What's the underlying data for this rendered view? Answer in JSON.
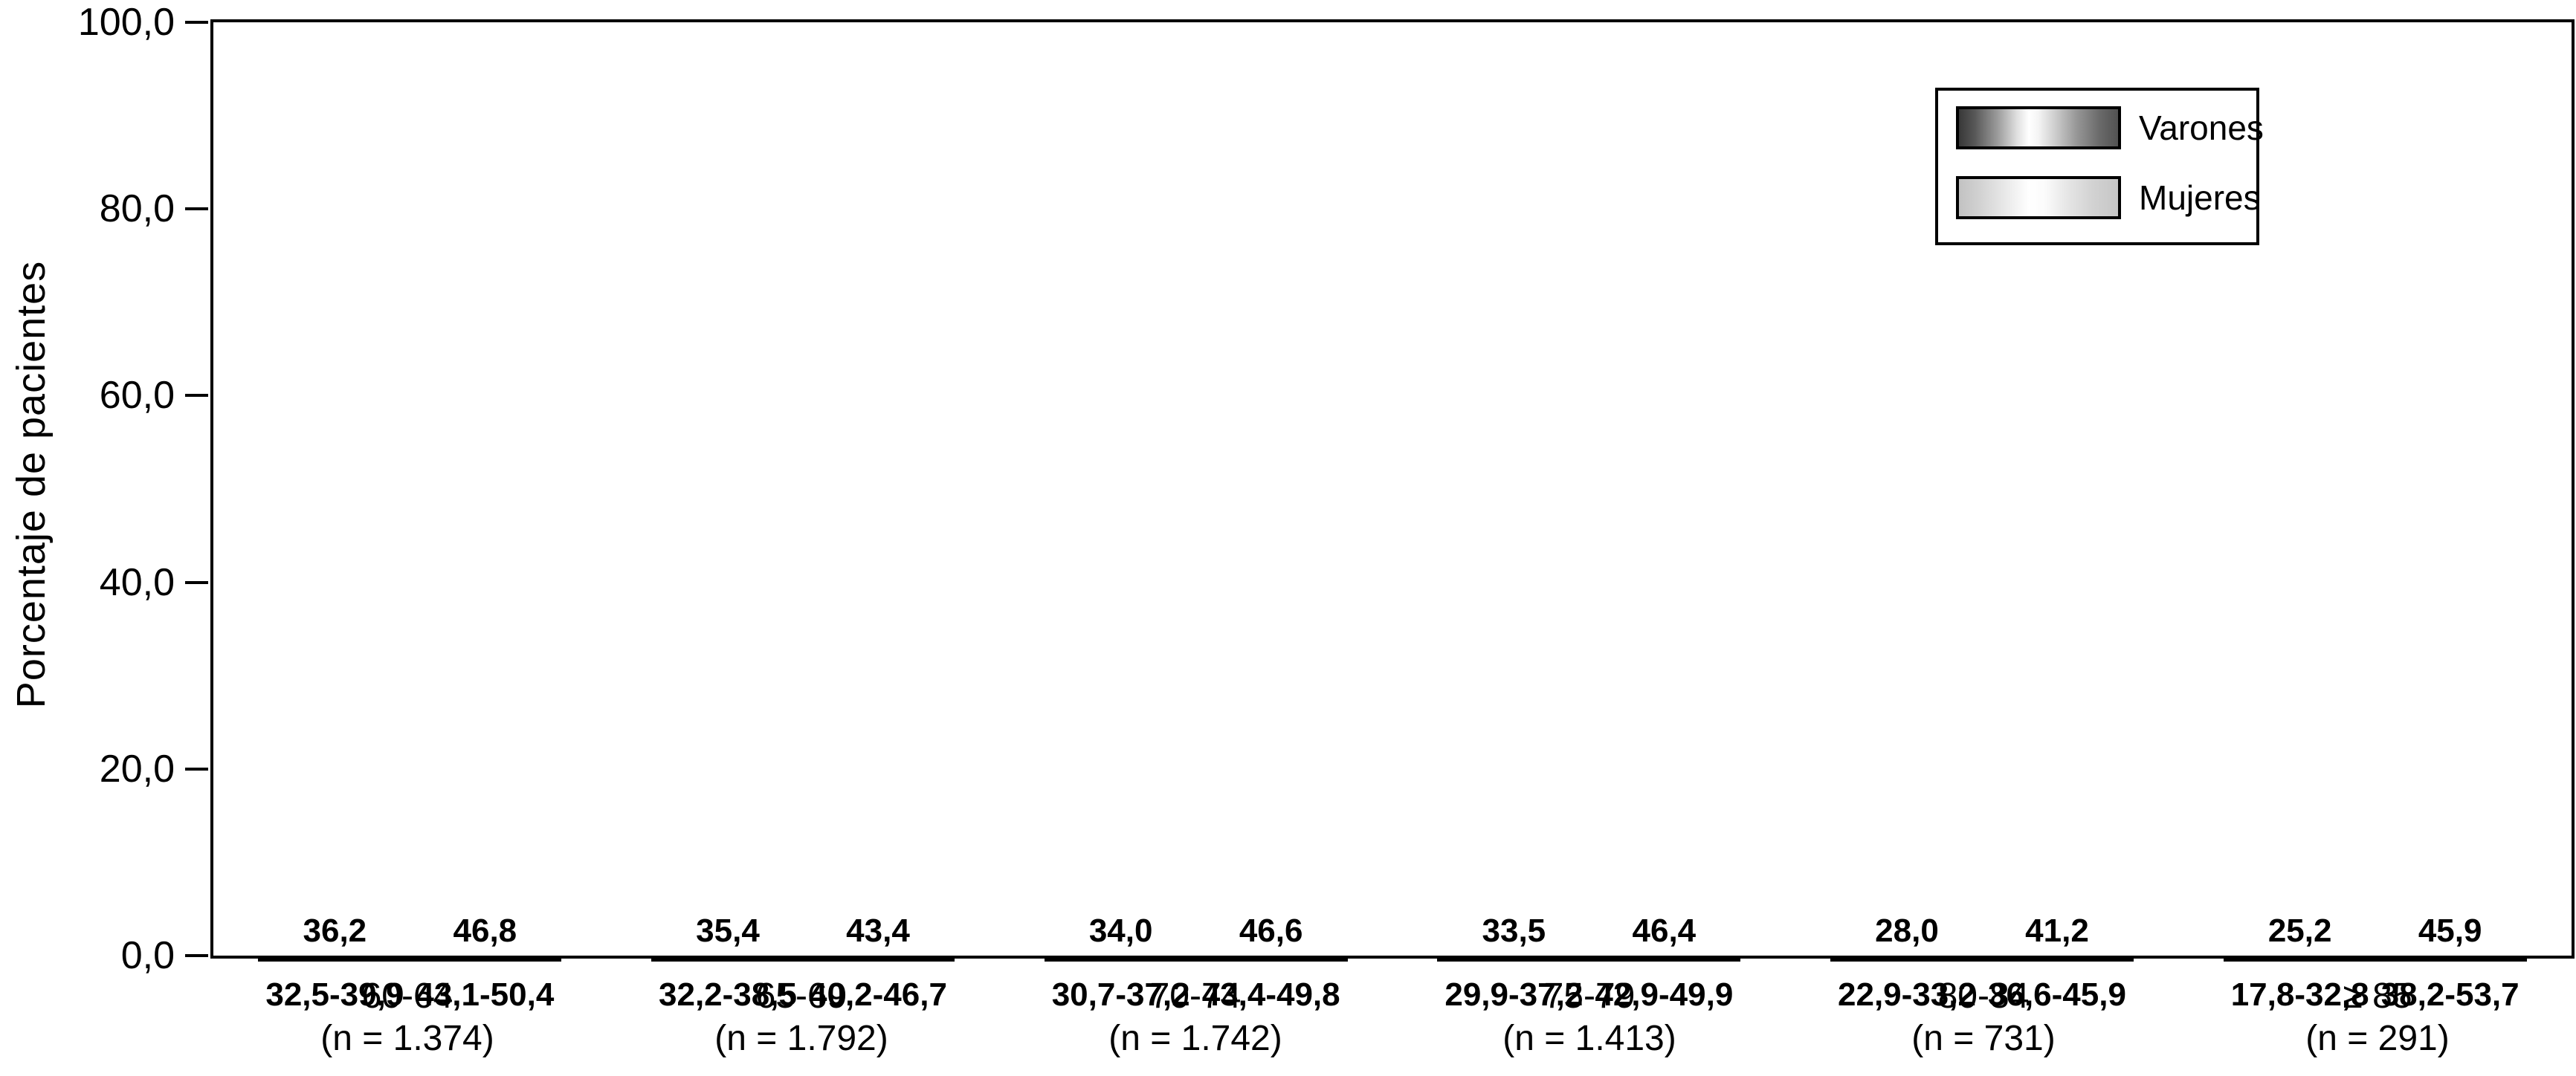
{
  "y_axis": {
    "title": "Porcentaje de pacientes",
    "ticks": [
      "0,0",
      "20,0",
      "40,0",
      "60,0",
      "80,0",
      "100,0"
    ],
    "tick_values": [
      0,
      20,
      40,
      60,
      80,
      100
    ]
  },
  "legend": {
    "items": [
      {
        "label": "Varones"
      },
      {
        "label": "Mujeres"
      }
    ]
  },
  "chart_data": {
    "type": "bar",
    "title": "",
    "xlabel": "",
    "ylabel": "Porcentaje de pacientes",
    "ylim": [
      0,
      100
    ],
    "grid": false,
    "legend_position": "top-right",
    "categories": [
      "60-64",
      "65-69",
      "70-74",
      "75-79",
      "80-84",
      "≥ 85"
    ],
    "category_sublabels": [
      "(n = 1.374)",
      "(n = 1.792)",
      "(n = 1.742)",
      "(n = 1.413)",
      "(n = 731)",
      "(n = 291)"
    ],
    "series": [
      {
        "name": "Varones",
        "values": [
          36.2,
          35.4,
          34.0,
          33.5,
          28.0,
          25.2
        ],
        "value_labels": [
          "36,2",
          "35,4",
          "34,0",
          "33,5",
          "28,0",
          "25,2"
        ],
        "ci_labels": [
          "32,5-39,9",
          "32,2-38,5",
          "30,7-37,2",
          "29,9-37,2",
          "22,9-33,2",
          "17,8-32,8"
        ],
        "color_dark": "#383838",
        "color_highlight": "#ffffff"
      },
      {
        "name": "Mujeres",
        "values": [
          46.8,
          43.4,
          46.6,
          46.4,
          41.2,
          45.9
        ],
        "value_labels": [
          "46,8",
          "43,4",
          "46,6",
          "46,4",
          "41,2",
          "45,9"
        ],
        "ci_labels": [
          "43,1-50,4",
          "40,2-46,7",
          "43,4-49,8",
          "42,9-49,9",
          "36,6-45,9",
          "38,2-53,7"
        ],
        "color_dark": "#c2c2c2",
        "color_highlight": "#ffffff"
      }
    ]
  }
}
